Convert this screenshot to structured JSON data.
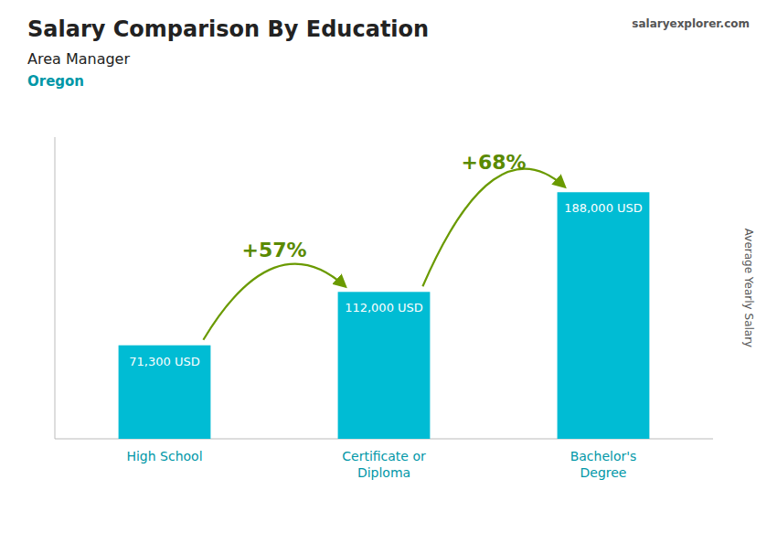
{
  "chart_data": {
    "type": "bar",
    "title": "Salary Comparison By Education",
    "subtitle": "Area Manager",
    "location": "Oregon",
    "source": "salaryexplorer.com",
    "ylabel": "Average Yearly Salary",
    "categories": [
      "High School",
      "Certificate or\nDiploma",
      "Bachelor's\nDegree"
    ],
    "values": [
      71300,
      112000,
      188000
    ],
    "value_labels": [
      "71,300 USD",
      "112,000 USD",
      "188,000 USD"
    ],
    "data_labels": true,
    "annotations": [
      "+57%",
      "+68%"
    ],
    "color": "#00bcd4",
    "ylim": [
      0,
      230000
    ],
    "tick_labels": false,
    "grid": false
  }
}
